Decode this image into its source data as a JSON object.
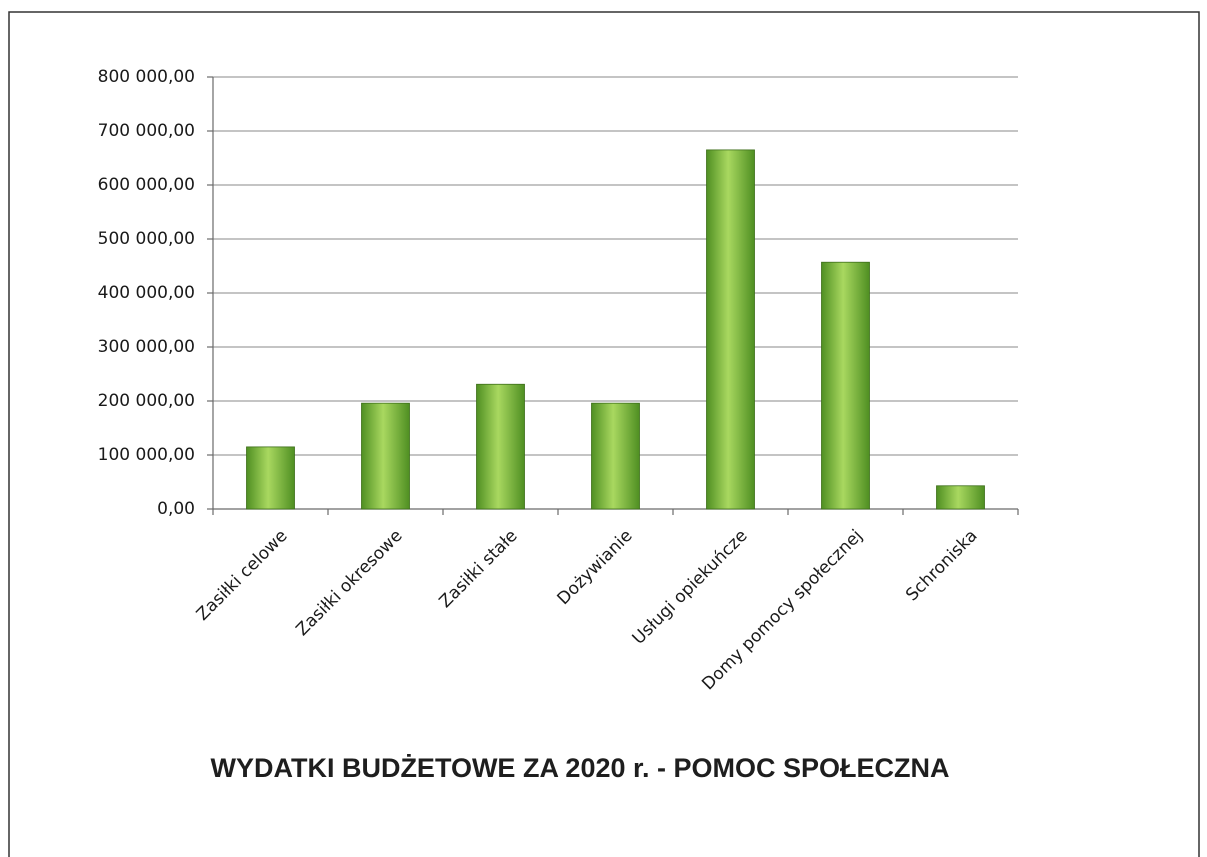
{
  "chart_data": {
    "type": "bar",
    "title": "WYDATKI BUDŻETOWE ZA 2020 r. - POMOC SPOŁECZNA",
    "categories": [
      "Zasiłki celowe",
      "Zasiłki  okresowe",
      "Zasiłki stałe",
      "Dożywianie",
      "Usługi opiekuńcze",
      "Domy pomocy społecznej",
      "Schroniska"
    ],
    "values": [
      115000,
      196000,
      231000,
      196000,
      665000,
      457000,
      43000
    ],
    "color": "#4f8f22",
    "ylim": [
      0,
      800000
    ],
    "yticks": [
      {
        "value": 0,
        "label": "0,00"
      },
      {
        "value": 100000,
        "label": "100 000,00"
      },
      {
        "value": 200000,
        "label": "200 000,00"
      },
      {
        "value": 300000,
        "label": "300 000,00"
      },
      {
        "value": 400000,
        "label": "400 000,00"
      },
      {
        "value": 500000,
        "label": "500 000,00"
      },
      {
        "value": 600000,
        "label": "600 000,00"
      },
      {
        "value": 700000,
        "label": "700 000,00"
      },
      {
        "value": 800000,
        "label": "800 000,00"
      }
    ],
    "grid": true
  }
}
